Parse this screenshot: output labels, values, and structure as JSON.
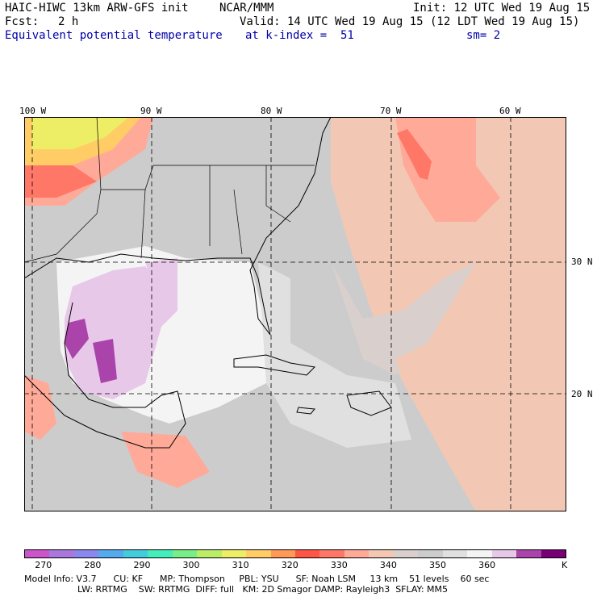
{
  "header": {
    "model": "HAIC-HIWC 13km ARW-GFS init",
    "org": "NCAR/MMM",
    "init": "Init: 12 UTC Wed 19 Aug 15",
    "fcst_label": "Fcst:",
    "fcst_value": "2 h",
    "valid": "Valid: 14 UTC Wed 19 Aug 15 (12 LDT Wed 19 Aug 15)",
    "field": "Equivalent potential temperature",
    "level": "at k-index =  51",
    "smoothing": "sm= 2"
  },
  "axes": {
    "lon_labels": [
      "100 W",
      "90 W",
      "80 W",
      "70 W",
      "60 W"
    ],
    "lat_labels": [
      "30 N",
      "20 N"
    ]
  },
  "colorbar": {
    "colors": [
      "#cc55cc",
      "#aa77dd",
      "#8a88ee",
      "#55aaee",
      "#44ccdd",
      "#44eebb",
      "#77ee88",
      "#bbee66",
      "#eeee66",
      "#ffcc66",
      "#ff9955",
      "#ff5544",
      "#ff7766",
      "#ffaa99",
      "#f2c8b4",
      "#d9cfcc",
      "#cccccc",
      "#e0e0e0",
      "#f4f4f4",
      "#e8c8e8",
      "#aa44aa",
      "#770077"
    ],
    "tick_labels": [
      "270",
      "280",
      "290",
      "300",
      "310",
      "320",
      "330",
      "340",
      "350",
      "360"
    ],
    "unit": "K"
  },
  "footer": {
    "line1": "Model Info: V3.7      CU: KF      MP: Thompson     PBL: YSU      SF: Noah LSM     13 km    51 levels    60 sec",
    "line2": "LW: RRTMG    SW: RRTMG  DIFF: full   KM: 2D Smagor DAMP: Rayleigh3  SFLAY: MM5"
  }
}
